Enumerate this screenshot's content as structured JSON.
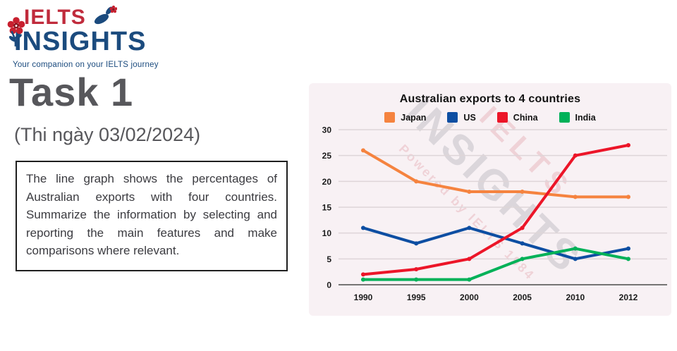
{
  "logo": {
    "brand_top": "IELTS",
    "brand_bottom": "INSIGHTS",
    "tagline": "Your companion on your IELTS journey",
    "brand_red": "#C02B3C",
    "brand_blue": "#1B4B7E"
  },
  "heading": {
    "title": "Task 1",
    "date": "(Thi ngày 03/02/2024)"
  },
  "task": {
    "description": "The line graph shows the percentages of Australian exports with four countries. Summarize the information by selecting and reporting the main features and make comparisons where relevant."
  },
  "watermark": {
    "line1": "IELTS",
    "line2": "INSIGHTS",
    "line3": "Powered by IELTS 1984"
  },
  "chart_data": {
    "type": "line",
    "title": "Australian exports to 4 countries",
    "categories": [
      "1990",
      "1995",
      "2000",
      "2005",
      "2010",
      "2012"
    ],
    "series": [
      {
        "name": "Japan",
        "color": "#F5833F",
        "values": [
          26,
          20,
          18,
          18,
          17,
          17
        ]
      },
      {
        "name": "US",
        "color": "#0D4EA2",
        "values": [
          11,
          8,
          11,
          8,
          5,
          7
        ]
      },
      {
        "name": "China",
        "color": "#EC1528",
        "values": [
          2,
          3,
          5,
          11,
          25,
          27
        ]
      },
      {
        "name": "India",
        "color": "#00B158",
        "values": [
          1,
          1,
          1,
          5,
          7,
          5
        ]
      }
    ],
    "xlabel": "",
    "ylabel": "",
    "ylim": [
      0,
      30
    ],
    "yticks": [
      0,
      5,
      10,
      15,
      20,
      25,
      30
    ],
    "grid": true,
    "legend_position": "top",
    "panel_background": "#F8F1F4"
  }
}
